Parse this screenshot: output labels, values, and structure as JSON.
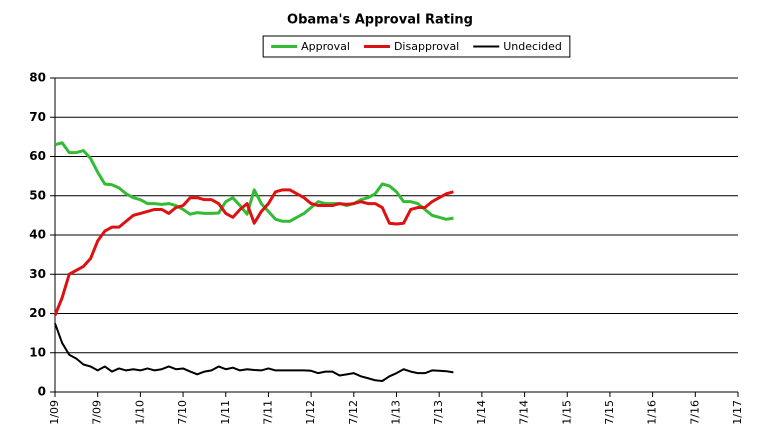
{
  "chart_data": {
    "type": "line",
    "title": "Obama's Approval Rating",
    "categories": [
      "1/09",
      null,
      null,
      null,
      null,
      null,
      "7/09",
      null,
      null,
      null,
      null,
      null,
      "1/10",
      null,
      null,
      null,
      null,
      null,
      "7/10",
      null,
      null,
      null,
      null,
      null,
      "1/11",
      null,
      null,
      null,
      null,
      null,
      "7/11",
      null,
      null,
      null,
      null,
      null,
      "1/12",
      null,
      null,
      null,
      null,
      null,
      "7/12",
      null,
      null,
      null,
      null,
      null,
      "1/13",
      null,
      null,
      null,
      null,
      null,
      "7/13",
      null,
      null,
      null,
      null,
      null,
      "1/14",
      null,
      null,
      null,
      null,
      null,
      "7/14",
      null,
      null,
      null,
      null,
      null,
      "1/15",
      null,
      null,
      null,
      null,
      null,
      "7/15",
      null,
      null,
      null,
      null,
      null,
      "1/16",
      null,
      null,
      null,
      null,
      null,
      "7/16",
      null,
      null,
      null,
      null,
      null,
      "1/17"
    ],
    "series": [
      {
        "name": "Approval",
        "color": "#33bb33",
        "values": [
          63,
          63.5,
          61,
          61,
          61.5,
          59.5,
          56,
          53,
          52.8,
          52,
          50.5,
          49.5,
          49,
          48,
          48,
          47.8,
          48,
          47.5,
          46.5,
          45.3,
          45.7,
          45.5,
          45.5,
          45.6,
          48.5,
          49.5,
          47.5,
          45.3,
          51.5,
          48,
          46,
          44,
          43.5,
          43.5,
          44.5,
          45.5,
          47,
          48.5,
          48,
          48,
          48,
          47.5,
          48,
          49,
          49.5,
          50.5,
          53,
          52.5,
          51,
          48.5,
          48.5,
          48,
          46.5,
          45,
          44.5,
          44,
          44.3,
          null,
          null,
          null,
          null,
          null,
          null,
          null,
          null,
          null,
          null,
          null,
          null,
          null,
          null,
          null,
          null,
          null,
          null,
          null,
          null,
          null,
          null,
          null,
          null,
          null,
          null,
          null,
          null,
          null,
          null,
          null,
          null,
          null,
          null,
          null,
          null,
          null,
          null,
          null,
          null
        ]
      },
      {
        "name": "Disapproval",
        "color": "#dd1111",
        "values": [
          19.5,
          24,
          30,
          31,
          32,
          34,
          38.5,
          41,
          42,
          42,
          43.5,
          45,
          45.5,
          46,
          46.5,
          46.5,
          45.5,
          47,
          47.5,
          49.5,
          49.5,
          49,
          49,
          48,
          45.5,
          44.5,
          46.5,
          48,
          43,
          46,
          48,
          51,
          51.5,
          51.5,
          50.5,
          49.5,
          48,
          47.5,
          47.5,
          47.5,
          48,
          47.8,
          48,
          48.5,
          48,
          48,
          47,
          43,
          42.8,
          43,
          46.5,
          47,
          47,
          48.5,
          49.5,
          50.5,
          51,
          null,
          null,
          null,
          null,
          null,
          null,
          null,
          null,
          null,
          null,
          null,
          null,
          null,
          null,
          null,
          null,
          null,
          null,
          null,
          null,
          null,
          null,
          null,
          null,
          null,
          null,
          null,
          null,
          null,
          null,
          null,
          null,
          null,
          null,
          null,
          null,
          null,
          null,
          null,
          null
        ]
      },
      {
        "name": "Undecided",
        "color": "#000000",
        "values": [
          17.5,
          12.5,
          9.5,
          8.5,
          7,
          6.5,
          5.5,
          6.5,
          5.2,
          6,
          5.5,
          5.8,
          5.5,
          6,
          5.5,
          5.8,
          6.5,
          5.8,
          6,
          5.2,
          4.5,
          5.2,
          5.5,
          6.5,
          5.8,
          6.2,
          5.5,
          5.8,
          5.6,
          5.5,
          6,
          5.5,
          5.5,
          5.5,
          5.5,
          5.5,
          5.4,
          4.8,
          5.2,
          5.2,
          4.2,
          4.5,
          4.8,
          4,
          3.5,
          3,
          2.8,
          4,
          4.8,
          5.8,
          5.2,
          4.8,
          4.8,
          5.5,
          5.4,
          5.3,
          5,
          null,
          null,
          null,
          null,
          null,
          null,
          null,
          null,
          null,
          null,
          null,
          null,
          null,
          null,
          null,
          null,
          null,
          null,
          null,
          null,
          null,
          null,
          null,
          null,
          null,
          null,
          null,
          null,
          null,
          null,
          null,
          null,
          null,
          null,
          null,
          null,
          null,
          null,
          null,
          null
        ]
      }
    ],
    "ylim": [
      0,
      80
    ],
    "yticks": [
      0,
      10,
      20,
      30,
      40,
      50,
      60,
      70,
      80
    ],
    "grid": true,
    "legend": "top"
  }
}
